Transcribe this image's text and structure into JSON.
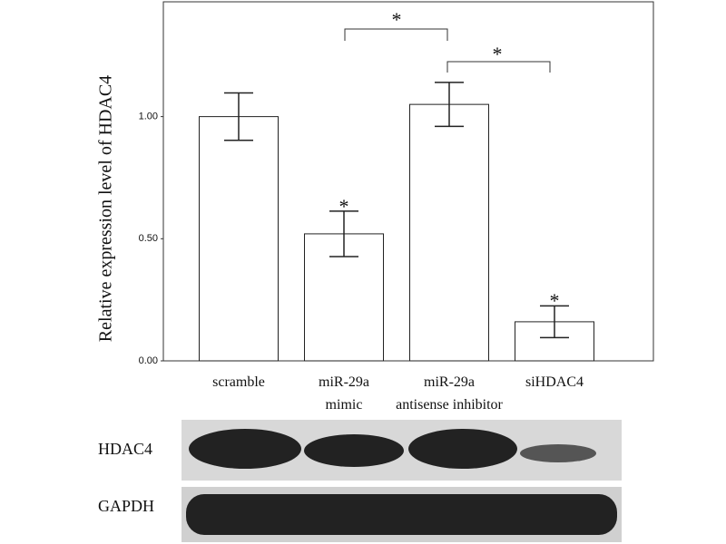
{
  "chart_data": {
    "type": "bar",
    "y_label": "Relative expression level of HDAC4",
    "categories": [
      "scramble",
      "miR-29a\nmimic",
      "miR-29a\nantisense inhibitor",
      "siHDAC4"
    ],
    "values": [
      1.0,
      0.52,
      1.05,
      0.16
    ],
    "errors": [
      0.097,
      0.093,
      0.09,
      0.065
    ],
    "color": "#ffffff",
    "ylim": [
      0,
      1.47
    ],
    "yticks": [
      {
        "value": 0,
        "label": "0.00"
      },
      {
        "value": 0.5,
        "label": "0.50"
      },
      {
        "value": 1,
        "label": "1.00"
      }
    ],
    "grid": false,
    "annotations": [
      "*",
      "*",
      "*",
      "*"
    ]
  },
  "blot": {
    "rows": [
      "HDAC4",
      "GAPDH"
    ]
  }
}
